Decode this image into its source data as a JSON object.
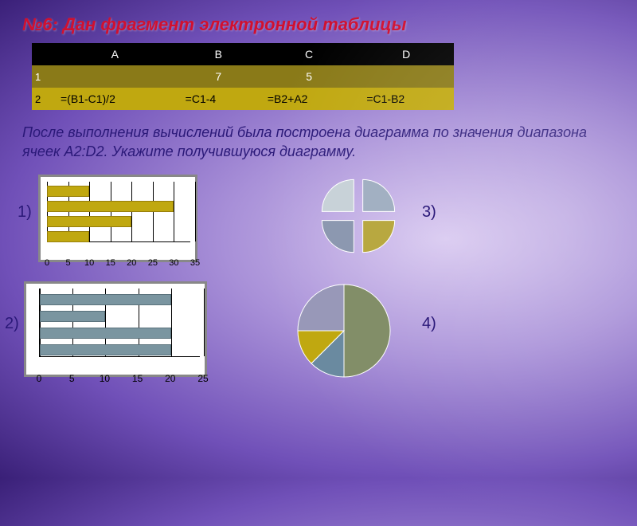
{
  "title": "№6: Дан фрагмент электронной таблицы",
  "table": {
    "headers": [
      "",
      "A",
      "B",
      "C",
      "D"
    ],
    "rows": [
      {
        "num": "1",
        "cells": [
          "",
          "7",
          "5",
          ""
        ]
      },
      {
        "num": "2",
        "cells": [
          "=(B1-C1)/2",
          "=C1-4",
          "=B2+A2",
          "=C1-B2"
        ]
      }
    ],
    "header_bg": "#000000",
    "row1_bg": "#8a7a18",
    "row2_bg": "#c0a810"
  },
  "body_text": "После выполнения вычислений была построена диаграмма по значения диапазона ячеек A2:D2. Укажите получившуюся диаграмму.",
  "answers": {
    "1": "1)",
    "2": "2)",
    "3": "3)",
    "4": "4)"
  },
  "chart1": {
    "type": "bar-horizontal",
    "values": [
      10,
      30,
      20,
      10
    ],
    "xmin": 0,
    "xmax": 35,
    "xtick_step": 5,
    "bar_color": "#c0a810",
    "tick_labels": [
      "0",
      "5",
      "10",
      "15",
      "20",
      "25",
      "30",
      "35"
    ]
  },
  "chart2": {
    "type": "bar-horizontal",
    "values": [
      20,
      10,
      20,
      20
    ],
    "xmin": 0,
    "xmax": 25,
    "xtick_step": 5,
    "bar_color": "#7a95a0",
    "tick_labels": [
      "0",
      "5",
      "10",
      "15",
      "20",
      "25"
    ]
  },
  "chart3": {
    "type": "pie-exploded",
    "slices": [
      {
        "value": 25,
        "color": "#a2b0c2"
      },
      {
        "value": 25,
        "color": "#b8a840"
      },
      {
        "value": 25,
        "color": "#8c98b0"
      },
      {
        "value": 25,
        "color": "#c8d2d8"
      }
    ]
  },
  "chart4": {
    "type": "pie",
    "slices": [
      {
        "value": 50,
        "color": "#828e68"
      },
      {
        "value": 12.5,
        "color": "#6a8aa0"
      },
      {
        "value": 12.5,
        "color": "#c0a810"
      },
      {
        "value": 25,
        "color": "#9898b8"
      }
    ]
  }
}
